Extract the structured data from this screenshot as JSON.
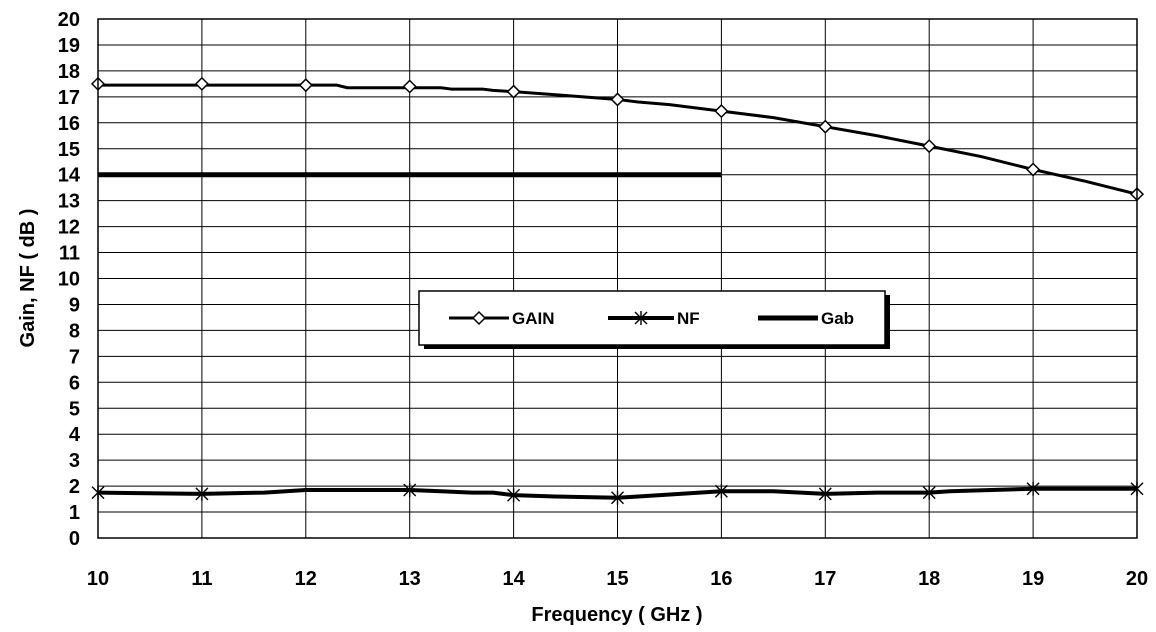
{
  "chart_data": {
    "type": "line",
    "title": "",
    "xlabel": "Frequency ( GHz )",
    "ylabel": "Gain, NF ( dB )",
    "xlim": [
      10,
      20
    ],
    "ylim": [
      0,
      20
    ],
    "x_ticks": [
      10,
      11,
      12,
      13,
      14,
      15,
      16,
      17,
      18,
      19,
      20
    ],
    "y_ticks": [
      0,
      1,
      2,
      3,
      4,
      5,
      6,
      7,
      8,
      9,
      10,
      11,
      12,
      13,
      14,
      15,
      16,
      17,
      18,
      19,
      20
    ],
    "grid": true,
    "legend_position": "center",
    "series": [
      {
        "name": "GAIN",
        "marker": "diamond",
        "color": "#000000",
        "x": [
          10,
          11,
          12,
          13,
          14,
          15,
          16,
          17,
          18,
          19,
          20
        ],
        "y": [
          17.5,
          17.5,
          17.45,
          17.4,
          17.2,
          16.9,
          16.45,
          15.85,
          15.1,
          14.2,
          13.25
        ],
        "line_x": [
          10,
          11,
          12,
          12.3,
          12.4,
          13,
          13.3,
          13.4,
          13.7,
          13.8,
          14,
          14.5,
          15,
          15.2,
          15.5,
          16,
          16.5,
          17,
          17.5,
          18,
          18.5,
          19,
          19.5,
          20
        ],
        "line_y": [
          17.45,
          17.45,
          17.45,
          17.45,
          17.35,
          17.35,
          17.35,
          17.3,
          17.3,
          17.25,
          17.2,
          17.05,
          16.9,
          16.8,
          16.7,
          16.45,
          16.2,
          15.85,
          15.5,
          15.1,
          14.7,
          14.2,
          13.75,
          13.25
        ]
      },
      {
        "name": "NF",
        "marker": "asterisk",
        "color": "#000000",
        "x": [
          10,
          11,
          13,
          14,
          15,
          16,
          17,
          18,
          19,
          20
        ],
        "y": [
          1.75,
          1.7,
          1.85,
          1.65,
          1.55,
          1.8,
          1.7,
          1.75,
          1.9,
          1.9
        ],
        "line_x": [
          10,
          11,
          11.6,
          12,
          13,
          13.3,
          13.6,
          13.8,
          14,
          14.4,
          15,
          15.2,
          15.6,
          16,
          16.5,
          17,
          17.5,
          18,
          18.2,
          18.6,
          19,
          20
        ],
        "line_y": [
          1.75,
          1.7,
          1.75,
          1.85,
          1.85,
          1.8,
          1.75,
          1.75,
          1.65,
          1.6,
          1.55,
          1.6,
          1.7,
          1.8,
          1.8,
          1.7,
          1.75,
          1.75,
          1.8,
          1.85,
          1.9,
          1.9
        ]
      },
      {
        "name": "Gab",
        "marker": "none",
        "color": "#000000",
        "x": [
          10,
          16
        ],
        "y": [
          14,
          14
        ]
      }
    ]
  }
}
